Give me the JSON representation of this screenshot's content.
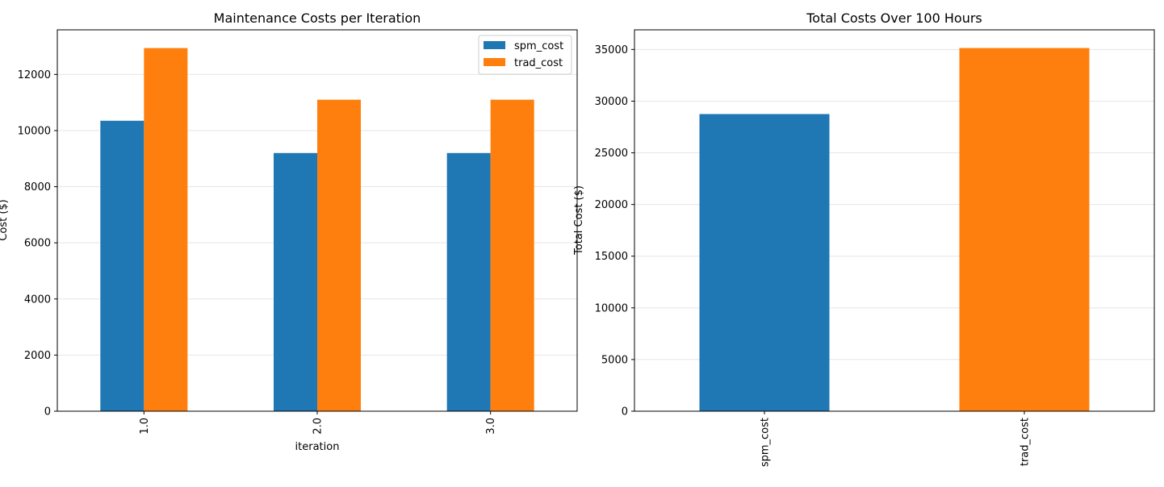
{
  "chart_data": [
    {
      "type": "bar",
      "title": "Maintenance Costs per Iteration",
      "xlabel": "iteration",
      "ylabel": "Cost ($)",
      "categories": [
        "1.0",
        "2.0",
        "3.0"
      ],
      "series": [
        {
          "name": "spm_cost",
          "color": "#1f77b4",
          "values": [
            10350,
            9200,
            9200
          ]
        },
        {
          "name": "trad_cost",
          "color": "#ff7f0e",
          "values": [
            12940,
            11100,
            11100
          ]
        }
      ],
      "ylim": [
        0,
        13590
      ],
      "yticks": [
        "0",
        "2000",
        "4000",
        "6000",
        "8000",
        "10000",
        "12000"
      ],
      "grid": "y",
      "legend": "top-right"
    },
    {
      "type": "bar",
      "title": "Total Costs Over 100 Hours",
      "xlabel": "",
      "ylabel": "Total Cost ($)",
      "categories": [
        "spm_cost",
        "trad_cost"
      ],
      "values": [
        28750,
        35140
      ],
      "colors": [
        "#1f77b4",
        "#ff7f0e"
      ],
      "ylim": [
        0,
        36900
      ],
      "yticks": [
        "0",
        "5000",
        "10000",
        "15000",
        "20000",
        "25000",
        "30000",
        "35000"
      ],
      "grid": "y",
      "legend": "none"
    }
  ]
}
